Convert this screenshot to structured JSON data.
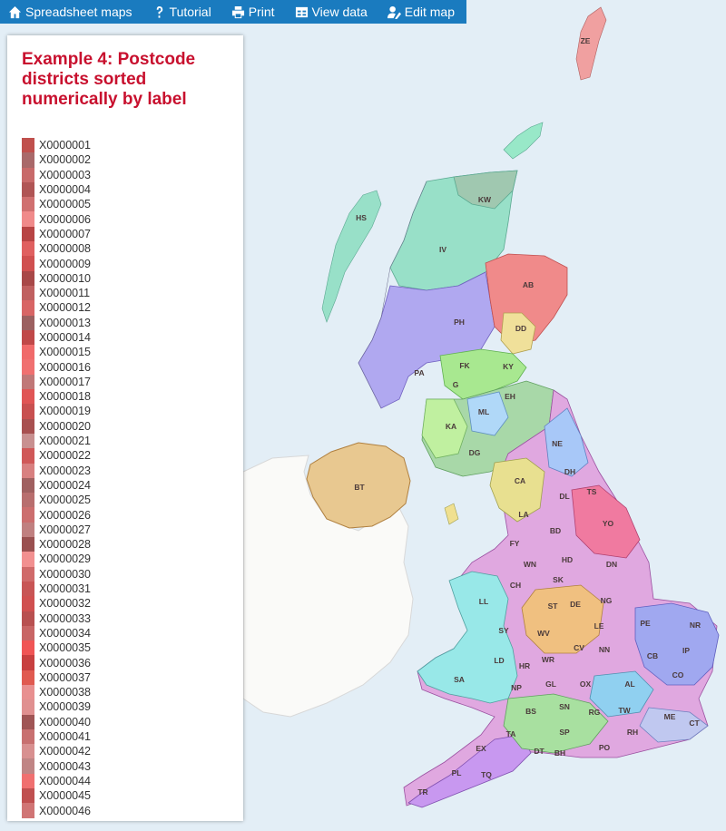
{
  "toolbar": {
    "items": [
      {
        "label": "Spreadsheet maps",
        "icon": "home-icon"
      },
      {
        "label": "Tutorial",
        "icon": "question-icon"
      },
      {
        "label": "Print",
        "icon": "print-icon"
      },
      {
        "label": "View data",
        "icon": "table-icon"
      },
      {
        "label": "Edit map",
        "icon": "user-edit-icon"
      }
    ]
  },
  "panel": {
    "title": "Example 4: Postcode districts sorted numerically by label",
    "legend": [
      {
        "label": "X0000001",
        "color": "#c0504d"
      },
      {
        "label": "X0000002",
        "color": "#a9696a"
      },
      {
        "label": "X0000003",
        "color": "#c86a6a"
      },
      {
        "label": "X0000004",
        "color": "#b05555"
      },
      {
        "label": "X0000005",
        "color": "#d07070"
      },
      {
        "label": "X0000006",
        "color": "#f08a8a"
      },
      {
        "label": "X0000007",
        "color": "#b84444"
      },
      {
        "label": "X0000008",
        "color": "#e06060"
      },
      {
        "label": "X0000009",
        "color": "#d05050"
      },
      {
        "label": "X0000010",
        "color": "#a84848"
      },
      {
        "label": "X0000011",
        "color": "#c06060"
      },
      {
        "label": "X0000012",
        "color": "#d86565"
      },
      {
        "label": "X0000013",
        "color": "#9c6060"
      },
      {
        "label": "X0000014",
        "color": "#c04848"
      },
      {
        "label": "X0000015",
        "color": "#f06a6a"
      },
      {
        "label": "X0000016",
        "color": "#f07070"
      },
      {
        "label": "X0000017",
        "color": "#c07878"
      },
      {
        "label": "X0000018",
        "color": "#e05555"
      },
      {
        "label": "X0000019",
        "color": "#c85050"
      },
      {
        "label": "X0000020",
        "color": "#a85050"
      },
      {
        "label": "X0000021",
        "color": "#c89090"
      },
      {
        "label": "X0000022",
        "color": "#d05858"
      },
      {
        "label": "X0000023",
        "color": "#d88080"
      },
      {
        "label": "X0000024",
        "color": "#a06060"
      },
      {
        "label": "X0000025",
        "color": "#b86e6e"
      },
      {
        "label": "X0000026",
        "color": "#cc6e6e"
      },
      {
        "label": "X0000027",
        "color": "#c08080"
      },
      {
        "label": "X0000028",
        "color": "#9a5050"
      },
      {
        "label": "X0000029",
        "color": "#f29090"
      },
      {
        "label": "X0000030",
        "color": "#d06a6a"
      },
      {
        "label": "X0000031",
        "color": "#c85555"
      },
      {
        "label": "X0000032",
        "color": "#d05050"
      },
      {
        "label": "X0000033",
        "color": "#b85050"
      },
      {
        "label": "X0000034",
        "color": "#c86565"
      },
      {
        "label": "X0000035",
        "color": "#f05555"
      },
      {
        "label": "X0000036",
        "color": "#c84040"
      },
      {
        "label": "X0000037",
        "color": "#e05a50"
      },
      {
        "label": "X0000038",
        "color": "#e89090"
      },
      {
        "label": "X0000039",
        "color": "#e09090"
      },
      {
        "label": "X0000040",
        "color": "#a05555"
      },
      {
        "label": "X0000041",
        "color": "#c87070"
      },
      {
        "label": "X0000042",
        "color": "#d89090"
      },
      {
        "label": "X0000043",
        "color": "#c08585"
      },
      {
        "label": "X0000044",
        "color": "#f07070"
      },
      {
        "label": "X0000045",
        "color": "#c05050"
      },
      {
        "label": "X0000046",
        "color": "#d07575"
      }
    ]
  },
  "map": {
    "colors": {
      "sea": "#e3eef6",
      "ireland": "#fafaf8",
      "scotland_north": "#98e0c8",
      "highlands": "#b0a8f0",
      "ne_scotland": "#f08a8a",
      "ni": "#e8c890",
      "england": "#e0a8e0"
    },
    "labels": [
      "ZE",
      "KW",
      "HS",
      "IV",
      "AB",
      "PH",
      "DD",
      "PA",
      "FK",
      "KY",
      "G",
      "EH",
      "ML",
      "KA",
      "DG",
      "NE",
      "BT",
      "DH",
      "CA",
      "TS",
      "DL",
      "LA",
      "YO",
      "BD",
      "FY",
      "WN",
      "HD",
      "DN",
      "CH",
      "SK",
      "LL",
      "ST",
      "DE",
      "NG",
      "SY",
      "LE",
      "PE",
      "NR",
      "WV",
      "LD",
      "HR",
      "WR",
      "CV",
      "NN",
      "CB",
      "IP",
      "SA",
      "NP",
      "GL",
      "OX",
      "AL",
      "CO",
      "BS",
      "SN",
      "RG",
      "TW",
      "ME",
      "CT",
      "TA",
      "SP",
      "RH",
      "EX",
      "DT",
      "BH",
      "PO",
      "PL",
      "TQ",
      "TR"
    ]
  }
}
